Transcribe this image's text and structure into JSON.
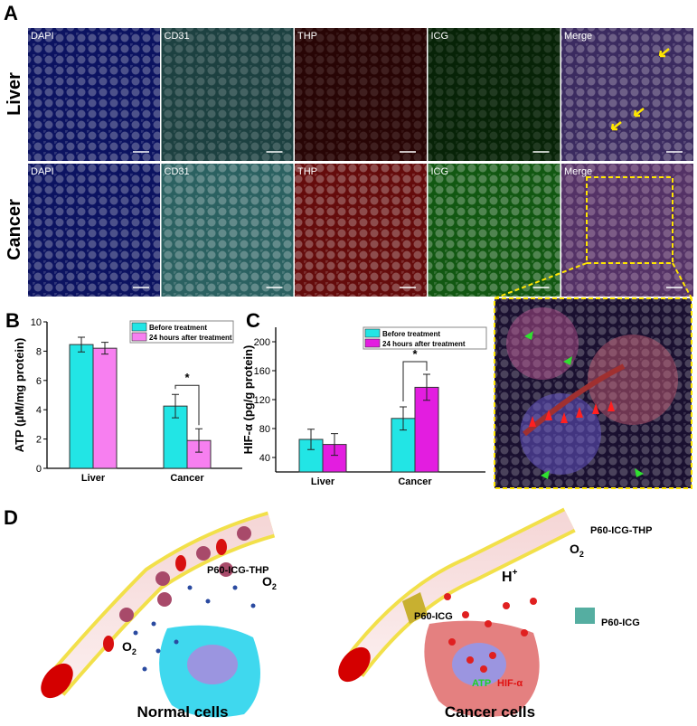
{
  "panel_labels": {
    "a": "A",
    "b": "B",
    "c": "C",
    "d": "D"
  },
  "panel_a": {
    "row_labels": [
      "Liver",
      "Cancer"
    ],
    "channels": [
      "DAPI",
      "CD31",
      "THP",
      "ICG",
      "Merge"
    ],
    "channel_colors": [
      "#1a2bd8",
      "#5fd6d6",
      "#e01a1a",
      "#29c429",
      "#6a5ad0"
    ]
  },
  "chart_data": [
    {
      "type": "bar",
      "categories": [
        "Liver",
        "Cancer"
      ],
      "ylabel": "ATP (μM/mg protein)",
      "ylim": [
        0,
        10
      ],
      "yticks": [
        0,
        2,
        4,
        6,
        8,
        10
      ],
      "legend": "top-right",
      "significance": "*",
      "series": [
        {
          "name": "Before treatment",
          "color": "#22e5e5",
          "values": [
            8.45,
            4.25
          ],
          "errors": [
            0.5,
            0.8
          ]
        },
        {
          "name": "24 hours after treatment",
          "color": "#f77ff0",
          "values": [
            8.2,
            1.9
          ],
          "errors": [
            0.4,
            0.8
          ]
        }
      ]
    },
    {
      "type": "bar",
      "categories": [
        "Liver",
        "Cancer"
      ],
      "ylabel": "HIF-α (pg/g protein)",
      "ylim": [
        20,
        220
      ],
      "yticks": [
        40,
        80,
        120,
        160,
        200
      ],
      "legend": "top-right",
      "significance": "*",
      "series": [
        {
          "name": "Before treatment",
          "color": "#22e5e5",
          "values": [
            65,
            94
          ],
          "errors": [
            14,
            16
          ]
        },
        {
          "name": "24 hours after treatment",
          "color": "#e31de0",
          "values": [
            58,
            137
          ],
          "errors": [
            15,
            18
          ]
        }
      ]
    }
  ],
  "panel_d": {
    "normal": {
      "caption": "Normal cells",
      "label_np": "P60-ICG-THP",
      "o2": "O",
      "o2_sub": "2"
    },
    "cancer": {
      "caption": "Cancer cells",
      "label_np": "P60-ICG-THP",
      "label_icg1": "P60-ICG",
      "label_icg2": "P60-ICG",
      "o2": "O",
      "o2_sub": "2",
      "h": "H",
      "h_sup": "+",
      "atp": "ATP",
      "hif": "HIF-α"
    }
  }
}
